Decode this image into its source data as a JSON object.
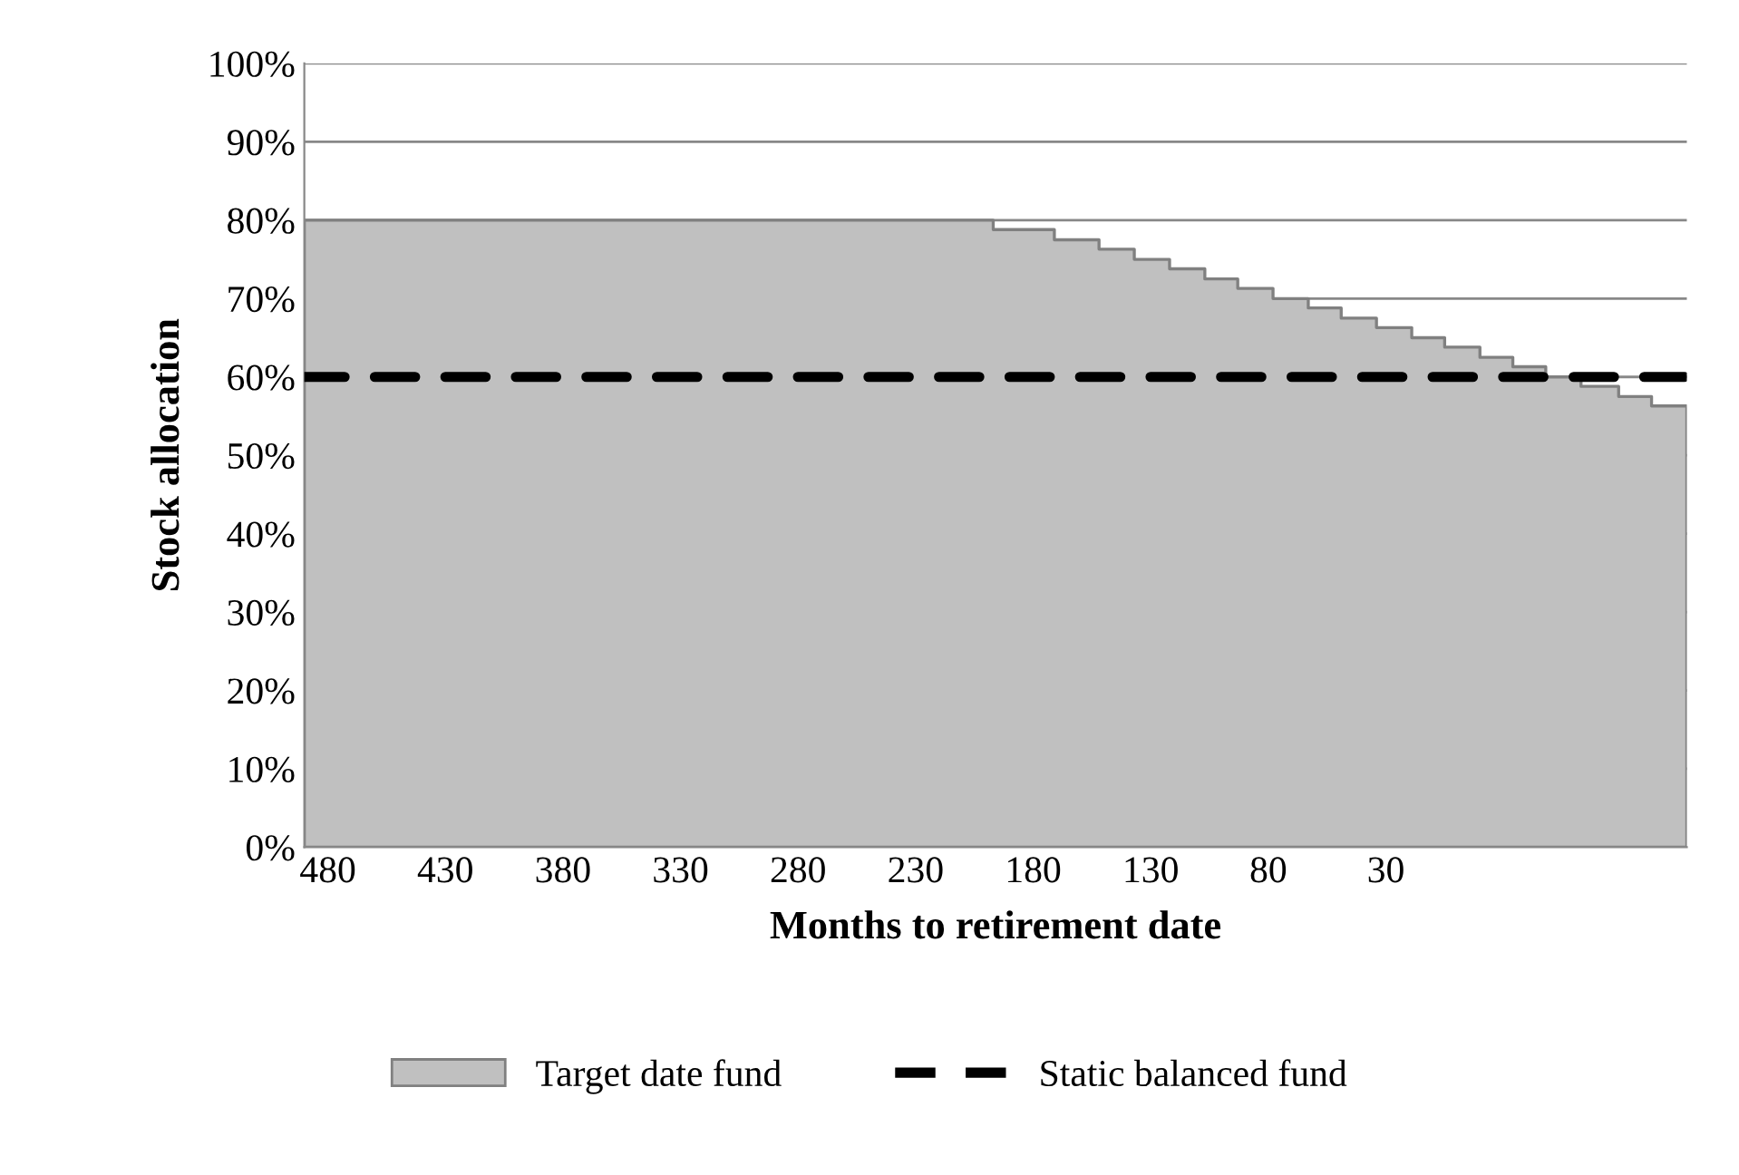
{
  "chart_data": {
    "type": "area",
    "xlabel": "Months to retirement date",
    "ylabel": "Stock allocation",
    "series": [
      {
        "name": "Target date fund",
        "color": "#c0c0c0",
        "x": [
          490,
          197,
          197,
          171,
          171,
          152,
          152,
          137,
          137,
          122,
          122,
          107,
          107,
          93,
          93,
          78,
          78,
          63,
          63,
          49,
          49,
          34,
          34,
          19,
          19,
          5,
          5,
          -10,
          -10,
          -24,
          -24,
          -38,
          -38,
          -53,
          -53,
          -69,
          -69,
          -83,
          -83,
          -98
        ],
        "values": [
          80,
          80,
          78.8,
          78.8,
          77.5,
          77.5,
          76.3,
          76.3,
          75,
          75,
          73.8,
          73.8,
          72.5,
          72.5,
          71.3,
          71.3,
          70,
          70,
          68.8,
          68.8,
          67.5,
          67.5,
          66.3,
          66.3,
          65,
          65,
          63.8,
          63.8,
          62.5,
          62.5,
          61.3,
          61.3,
          60,
          60,
          58.8,
          58.8,
          57.5,
          57.5,
          56.3,
          56.3
        ]
      },
      {
        "name": "Static balanced fund",
        "type": "line",
        "color": "#000000",
        "line_style": "dashed",
        "x": [
          490,
          -98
        ],
        "values": [
          60,
          60
        ]
      }
    ],
    "xlim": [
      490,
      -98
    ],
    "xticks": [
      480,
      430,
      380,
      330,
      280,
      230,
      180,
      130,
      80,
      30
    ],
    "ylim": [
      0,
      100
    ],
    "yticks": [
      {
        "value": 0,
        "label": "0%"
      },
      {
        "value": 10,
        "label": "10%"
      },
      {
        "value": 20,
        "label": "20%"
      },
      {
        "value": 30,
        "label": "30%"
      },
      {
        "value": 40,
        "label": "40%"
      },
      {
        "value": 50,
        "label": "50%"
      },
      {
        "value": 60,
        "label": "60%"
      },
      {
        "value": 70,
        "label": "70%"
      },
      {
        "value": 80,
        "label": "80%"
      },
      {
        "value": 90,
        "label": "90%"
      },
      {
        "value": 100,
        "label": "100%"
      }
    ],
    "grid": "y",
    "legend": "bottom"
  }
}
